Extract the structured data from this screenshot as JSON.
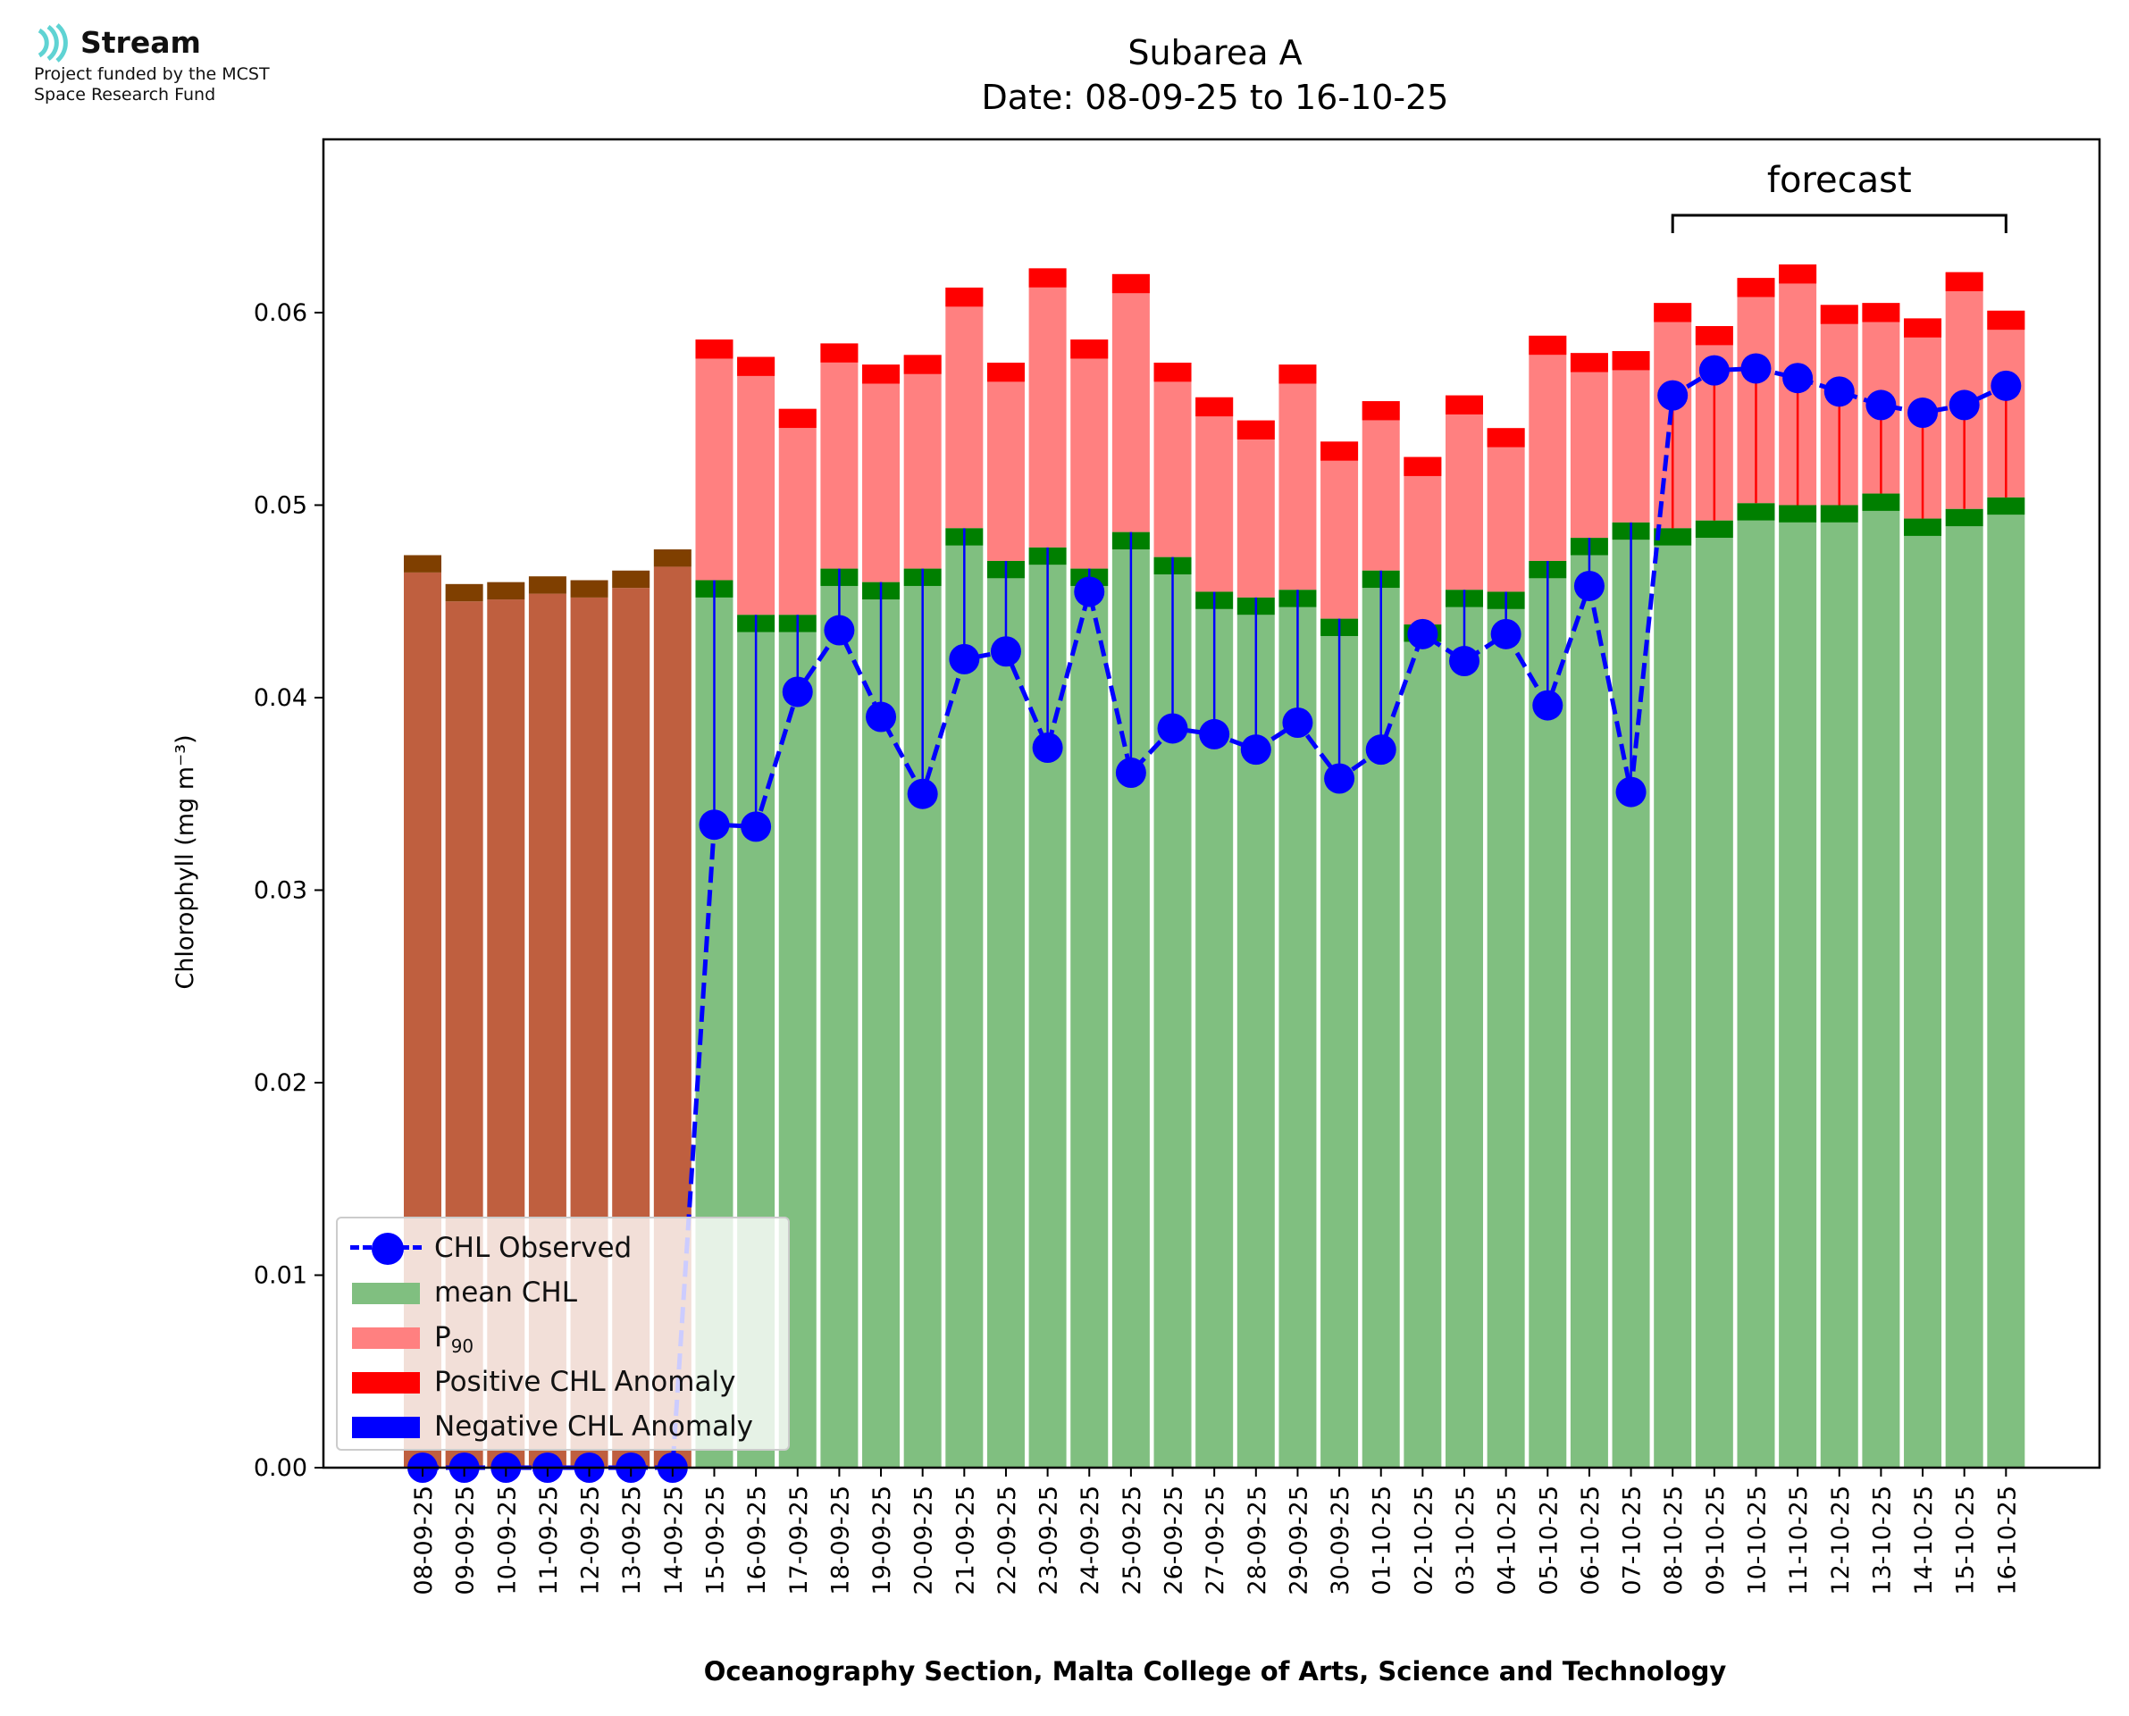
{
  "header": {
    "logo_text": "Stream",
    "logo_subtitle_line1": "Project funded by the MCST",
    "logo_subtitle_line2": "Space Research Fund"
  },
  "colors": {
    "climatology": "#bf5f3f",
    "climatology_cap": "#7f3f00",
    "mean": "#80bf80",
    "mean_cap": "#007f00",
    "p90": "#ff8080",
    "positive_anomaly": "#ff0000",
    "negative_anomaly": "#0000ff",
    "observed": "#0000ff"
  },
  "legend": {
    "observed": "CHL Observed",
    "mean": "mean CHL",
    "p90_base": "P",
    "p90_sub": "90",
    "positive": "Positive CHL Anomaly",
    "negative": "Negative CHL Anomaly"
  },
  "chart_data": {
    "type": "bar",
    "title": "Subarea A",
    "subtitle": "Date: 08-09-25 to 16-10-25",
    "xlabel": "Oceanography Section, Malta College of Arts, Science and Technology",
    "ylabel": "Chlorophyll (mg m⁻³)",
    "ylim": [
      0,
      0.069
    ],
    "yticks": [
      0.0,
      0.01,
      0.02,
      0.03,
      0.04,
      0.05,
      0.06
    ],
    "ytick_labels": [
      "0.00",
      "0.01",
      "0.02",
      "0.03",
      "0.04",
      "0.05",
      "0.06"
    ],
    "annotation": "forecast",
    "forecast_range": [
      "08-10-25",
      "16-10-25"
    ],
    "categories": [
      "08-09-25",
      "09-09-25",
      "10-09-25",
      "11-09-25",
      "12-09-25",
      "13-09-25",
      "14-09-25",
      "15-09-25",
      "16-09-25",
      "17-09-25",
      "18-09-25",
      "19-09-25",
      "20-09-25",
      "21-09-25",
      "22-09-25",
      "23-09-25",
      "24-09-25",
      "25-09-25",
      "26-09-25",
      "27-09-25",
      "28-09-25",
      "29-09-25",
      "30-09-25",
      "01-10-25",
      "02-10-25",
      "03-10-25",
      "04-10-25",
      "05-10-25",
      "06-10-25",
      "07-10-25",
      "08-10-25",
      "09-10-25",
      "10-10-25",
      "11-10-25",
      "12-10-25",
      "13-10-25",
      "14-10-25",
      "15-10-25",
      "16-10-25"
    ],
    "climatology": [
      0.0474,
      0.0459,
      0.046,
      0.0463,
      0.0461,
      0.0466,
      0.0477,
      null,
      null,
      null,
      null,
      null,
      null,
      null,
      null,
      null,
      null,
      null,
      null,
      null,
      null,
      null,
      null,
      null,
      null,
      null,
      null,
      null,
      null,
      null,
      null,
      null,
      null,
      null,
      null,
      null,
      null,
      null,
      null
    ],
    "mean": [
      null,
      null,
      null,
      null,
      null,
      null,
      null,
      0.0461,
      0.0443,
      0.0443,
      0.0467,
      0.046,
      0.0467,
      0.0488,
      0.0471,
      0.0478,
      0.0467,
      0.0486,
      0.0473,
      0.0455,
      0.0452,
      0.0456,
      0.0441,
      0.0466,
      0.0438,
      0.0456,
      0.0455,
      0.0471,
      0.0483,
      0.0491,
      0.0488,
      0.0492,
      0.0501,
      0.05,
      0.05,
      0.0506,
      0.0493,
      0.0498,
      0.0504
    ],
    "p90": [
      null,
      null,
      null,
      null,
      null,
      null,
      null,
      0.0586,
      0.0577,
      0.055,
      0.0584,
      0.0573,
      0.0578,
      0.0613,
      0.0574,
      0.0623,
      0.0586,
      0.062,
      0.0574,
      0.0556,
      0.0544,
      0.0573,
      0.0533,
      0.0554,
      0.0525,
      0.0557,
      0.054,
      0.0588,
      0.0579,
      0.058,
      0.0605,
      0.0593,
      0.0618,
      0.0625,
      0.0604,
      0.0605,
      0.0597,
      0.0621,
      0.0601
    ],
    "observed": [
      0,
      0,
      0,
      0,
      0,
      0,
      0,
      0.0334,
      0.0333,
      0.0403,
      0.0435,
      0.039,
      0.035,
      0.042,
      0.0424,
      0.0374,
      0.0455,
      0.0361,
      0.0384,
      0.0381,
      0.0373,
      0.0387,
      0.0358,
      0.0373,
      0.0433,
      0.0419,
      0.0433,
      0.0396,
      0.0458,
      0.0351,
      0.0557,
      0.057,
      0.0571,
      0.0566,
      0.0559,
      0.0552,
      0.0548,
      0.0552,
      0.0562
    ]
  }
}
